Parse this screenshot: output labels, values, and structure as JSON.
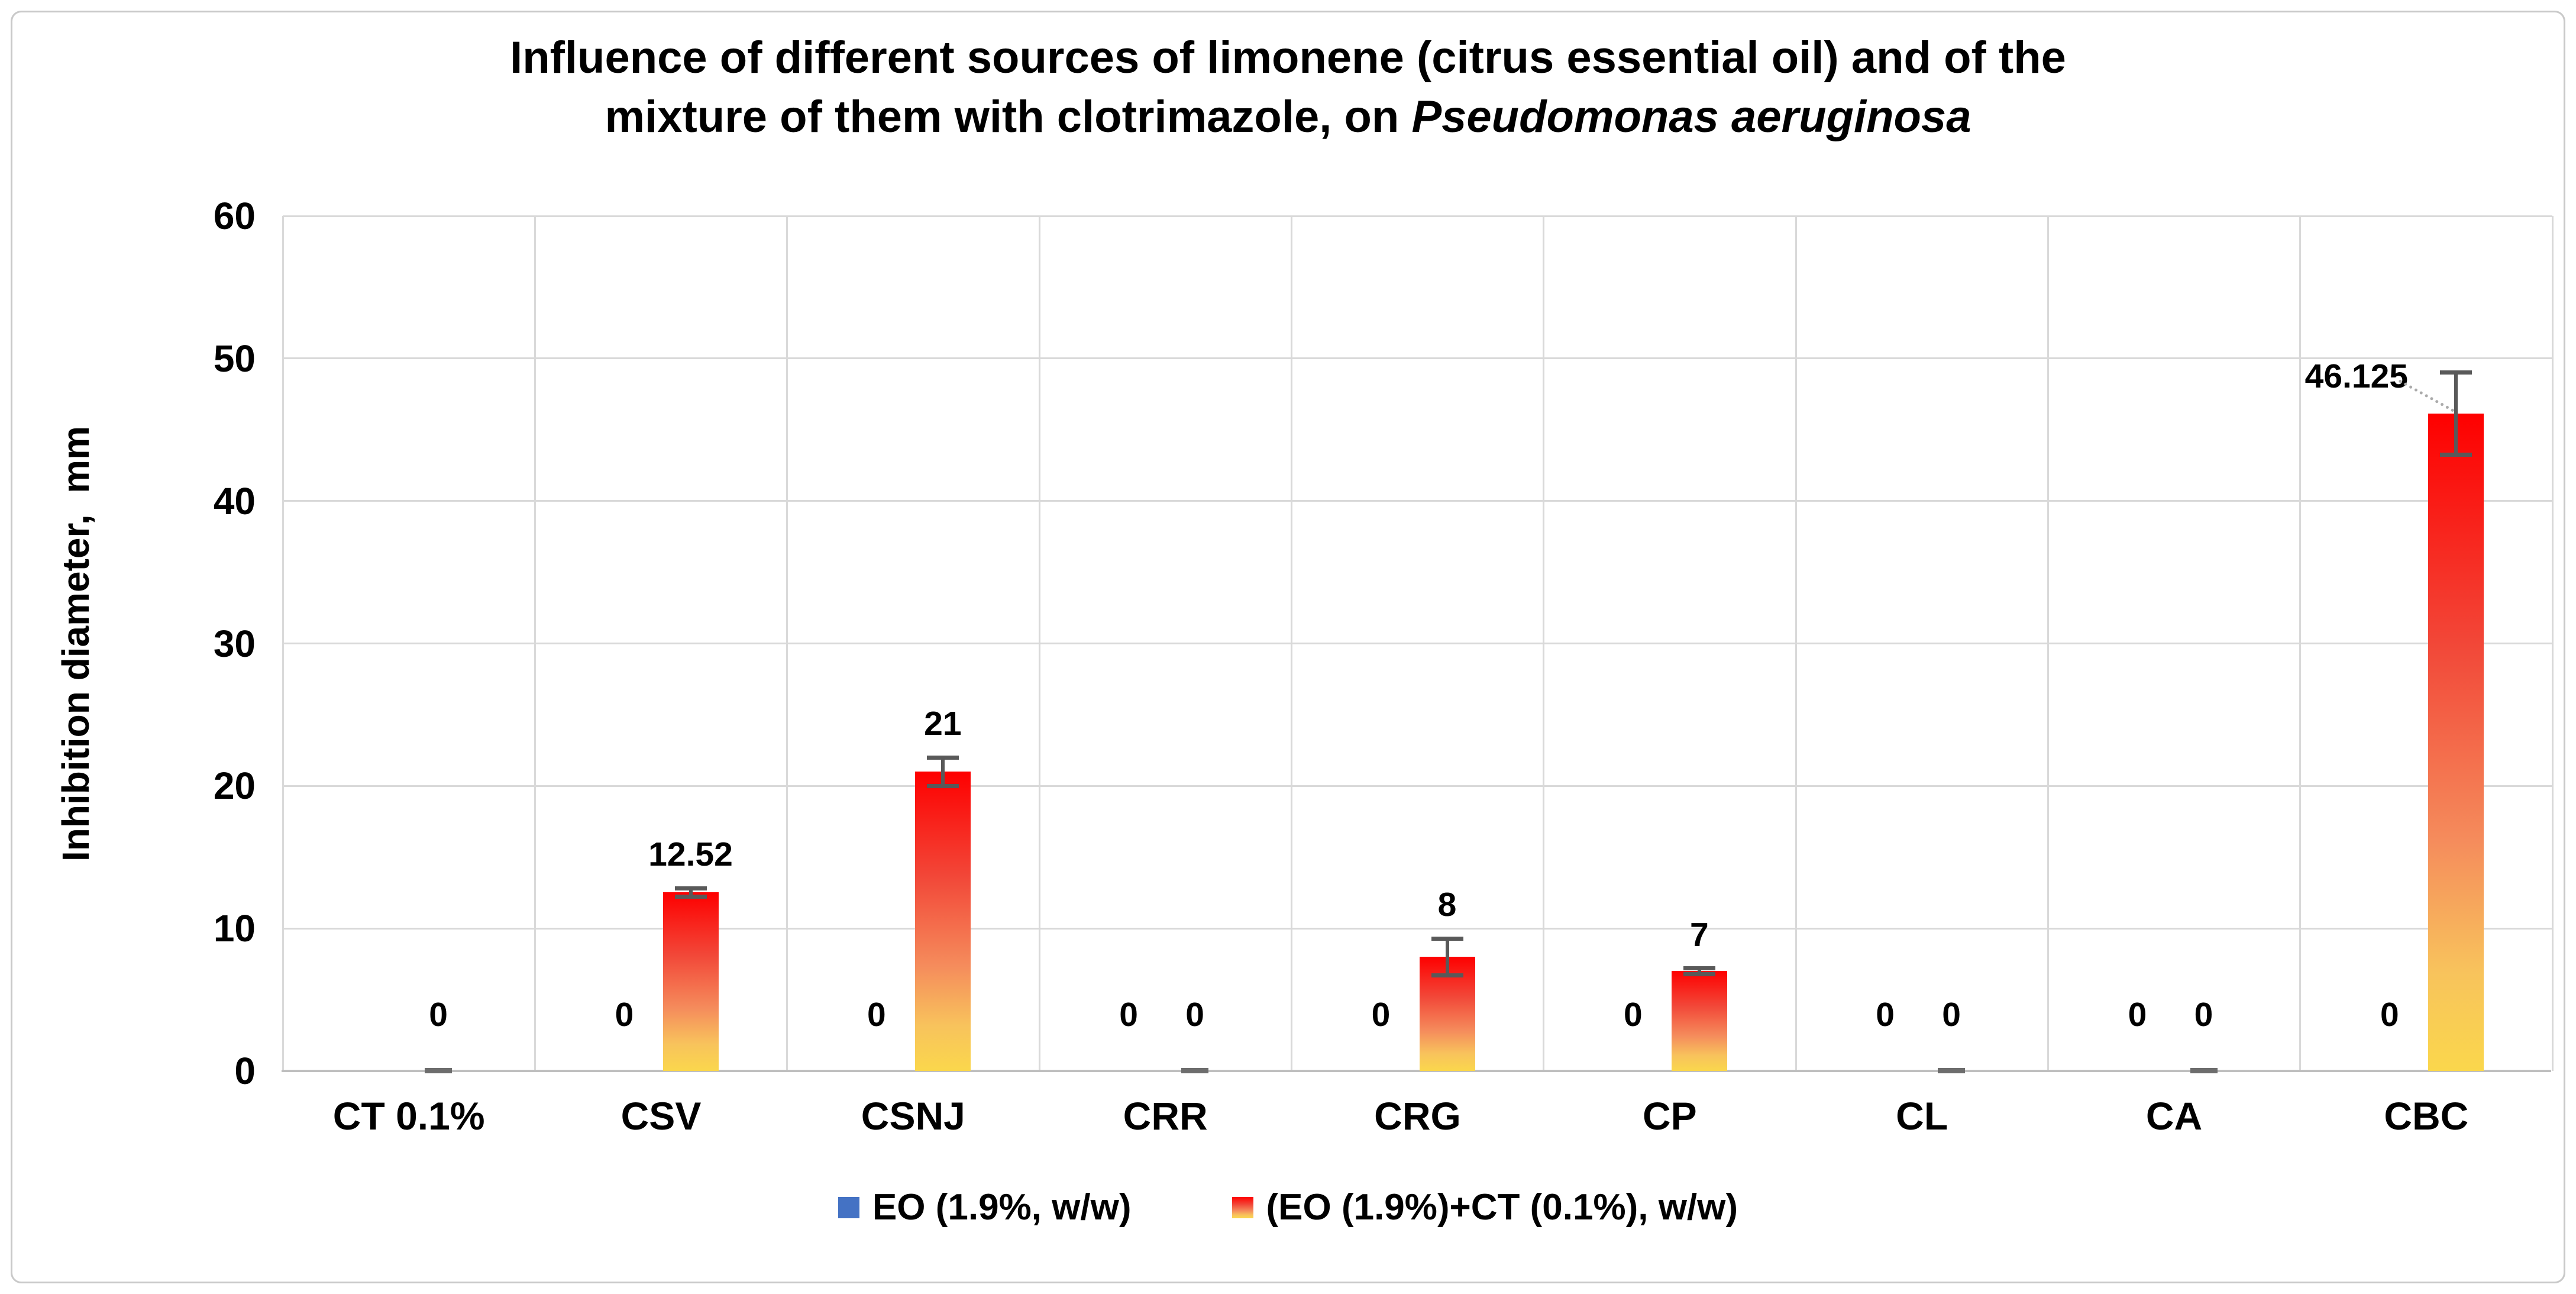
{
  "chart_data": {
    "type": "bar",
    "title_line1": "Influence of different sources of limonene (citrus essential oil) and of the",
    "title_line2": "mixture of them with clotrimazole, on ",
    "title_species": "Pseudomonas aeruginosa",
    "ylabel": "Inhibition diameter,  mm",
    "xlabel": "",
    "ylim": [
      0,
      60
    ],
    "ytick_step": 10,
    "yticks": [
      0,
      10,
      20,
      30,
      40,
      50,
      60
    ],
    "grid": true,
    "legend_position": "bottom",
    "categories": [
      "CT 0.1%",
      "CSV",
      "CSNJ",
      "CRR",
      "CRG",
      "CP",
      "CL",
      "CA",
      "CBC"
    ],
    "series": [
      {
        "name": "EO (1.9%, w/w)",
        "marker_color": "#4472C4",
        "values": [
          null,
          0,
          0,
          0,
          0,
          0,
          0,
          0,
          0
        ]
      },
      {
        "name": "(EO (1.9%)+CT (0.1%), w/w)",
        "marker_gradient": [
          "#FE0000",
          "#F24738",
          "#F58C5C",
          "#F8C35C",
          "#FAD74C"
        ],
        "values": [
          0,
          12.52,
          21,
          0,
          8,
          7,
          0,
          0,
          46.125
        ],
        "error_bars": [
          0,
          0.3,
          1,
          0,
          1.3,
          0.2,
          0,
          0,
          2.9
        ]
      }
    ],
    "data_label_callout_category": "CBC",
    "colors": {
      "gridline": "#D9D9D9",
      "axis_line": "#BFBFBF",
      "error_bar": "#595959",
      "zero_cap_dash": "#6D6D6D",
      "leader_line": "#ABABAB",
      "frame_border": "#C9C9C9",
      "text": "#000000"
    }
  }
}
